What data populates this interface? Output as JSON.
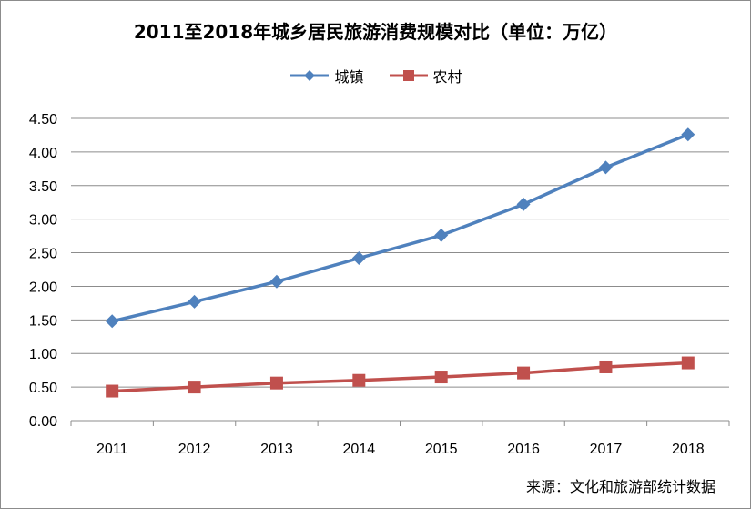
{
  "chart_data": {
    "type": "line",
    "title": "2011至2018年城乡居民旅游消费规模对比（单位：万亿）",
    "categories": [
      "2011",
      "2012",
      "2013",
      "2014",
      "2015",
      "2016",
      "2017",
      "2018"
    ],
    "series": [
      {
        "name": "城镇",
        "color": "#4f81bd",
        "marker": "diamond",
        "values": [
          1.48,
          1.77,
          2.07,
          2.42,
          2.76,
          3.22,
          3.77,
          4.26
        ]
      },
      {
        "name": "农村",
        "color": "#c0504d",
        "marker": "square",
        "values": [
          0.44,
          0.5,
          0.56,
          0.6,
          0.65,
          0.71,
          0.8,
          0.86
        ]
      }
    ],
    "ylim": [
      0,
      4.5
    ],
    "yticks": [
      "0.00",
      "0.50",
      "1.00",
      "1.50",
      "2.00",
      "2.50",
      "3.00",
      "3.50",
      "4.00",
      "4.50"
    ],
    "xlabel": "",
    "ylabel": "",
    "grid": true,
    "legend_position": "top"
  },
  "source_note": "来源：文化和旅游部统计数据"
}
